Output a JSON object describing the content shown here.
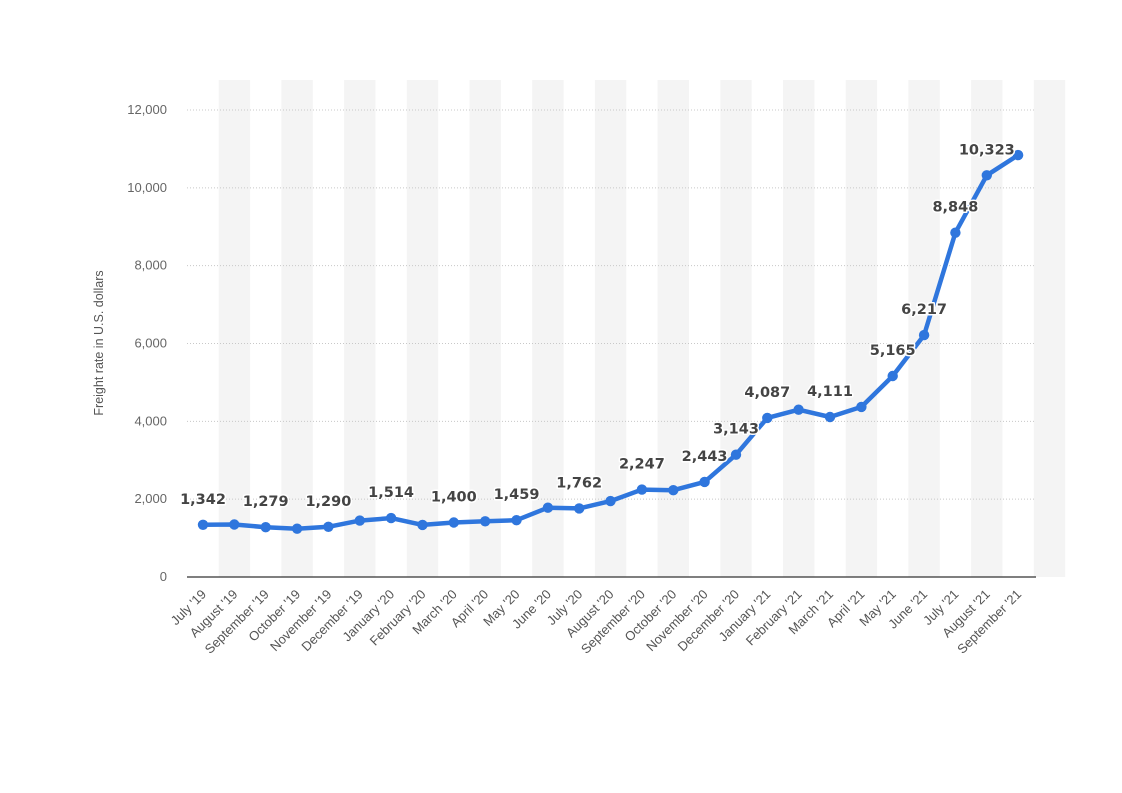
{
  "chart_data": {
    "type": "line",
    "title": "",
    "xlabel": "",
    "ylabel": "Freight rate in U.S. dollars",
    "ylim": [
      0,
      12000
    ],
    "yticks": [
      0,
      2000,
      4000,
      6000,
      8000,
      10000,
      12000
    ],
    "ytick_labels": [
      "0",
      "2,000",
      "4,000",
      "6,000",
      "8,000",
      "10,000",
      "12,000"
    ],
    "grid": true,
    "legend": "none",
    "series_color": "#2f76dd",
    "band_color": "#f4f4f4",
    "categories": [
      "July '19",
      "August '19",
      "September '19",
      "October '19",
      "November '19",
      "December '19",
      "January '20",
      "February '20",
      "March '20",
      "April '20",
      "May '20",
      "June '20",
      "July '20",
      "August '20",
      "September '20",
      "October '20",
      "November '20",
      "December '20",
      "January '21",
      "February '21",
      "March '21",
      "April '21",
      "May '21",
      "June '21",
      "July '21",
      "August '21",
      "September '21"
    ],
    "series": [
      {
        "name": "Freight rate",
        "values": [
          1342,
          1350,
          1279,
          1240,
          1290,
          1450,
          1514,
          1340,
          1400,
          1430,
          1459,
          1780,
          1762,
          1950,
          2247,
          2230,
          2443,
          3143,
          4087,
          4300,
          4111,
          4370,
          5165,
          6217,
          8848,
          10323,
          10840
        ],
        "data_labels": [
          "1,342",
          "",
          "1,279",
          "",
          "1,290",
          "",
          "1,514",
          "",
          "1,400",
          "",
          "1,459",
          "",
          "1,762",
          "",
          "2,247",
          "",
          "2,443",
          "3,143",
          "4,087",
          "",
          "4,111",
          "",
          "5,165",
          "6,217",
          "8,848",
          "10,323",
          ""
        ]
      }
    ]
  }
}
